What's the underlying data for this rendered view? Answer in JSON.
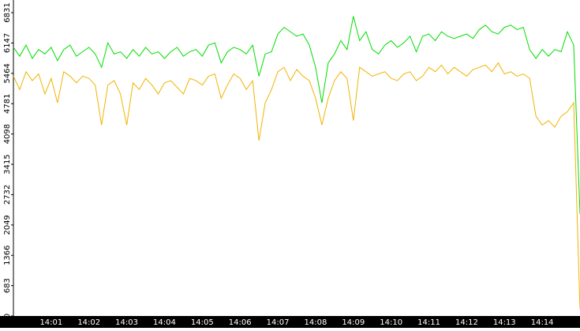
{
  "chart_data": {
    "type": "line",
    "categories": [
      null,
      null,
      null,
      null,
      null,
      null,
      "14:01",
      null,
      null,
      null,
      null,
      null,
      "14:02",
      null,
      null,
      null,
      null,
      null,
      "14:03",
      null,
      null,
      null,
      null,
      null,
      "14:04",
      null,
      null,
      null,
      null,
      null,
      "14:05",
      null,
      null,
      null,
      null,
      null,
      "14:06",
      null,
      null,
      null,
      null,
      null,
      "14:07",
      null,
      null,
      null,
      null,
      null,
      "14:08",
      null,
      null,
      null,
      null,
      null,
      "14:09",
      null,
      null,
      null,
      null,
      null,
      "14:10",
      null,
      null,
      null,
      null,
      null,
      "14:11",
      null,
      null,
      null,
      null,
      null,
      "14:12",
      null,
      null,
      null,
      null,
      null,
      "14:13",
      null,
      null,
      null,
      null,
      null,
      "14:14",
      null,
      null,
      null,
      null,
      null,
      null
    ],
    "series": [
      {
        "name": "green",
        "color": "#00dd00",
        "values": [
          6050,
          5850,
          6100,
          5800,
          6000,
          5900,
          6050,
          5750,
          6000,
          6100,
          5850,
          5950,
          6050,
          5900,
          5600,
          6150,
          5900,
          5950,
          5800,
          6000,
          5850,
          6050,
          5900,
          5950,
          5800,
          5950,
          6050,
          5850,
          5950,
          6000,
          5850,
          6100,
          6150,
          5700,
          5950,
          6050,
          6000,
          5900,
          6100,
          5400,
          5900,
          5950,
          6350,
          6500,
          6400,
          6300,
          6350,
          6100,
          5600,
          4800,
          5700,
          5900,
          6200,
          6000,
          6750,
          6200,
          6400,
          6000,
          5900,
          6100,
          6200,
          6050,
          6150,
          6300,
          5950,
          6300,
          6350,
          6200,
          6400,
          6300,
          6250,
          6300,
          6350,
          6250,
          6450,
          6550,
          6400,
          6350,
          6500,
          6550,
          6450,
          6500,
          6000,
          5800,
          6000,
          5850,
          6000,
          5950,
          6400,
          6100,
          2300
        ]
      },
      {
        "name": "orange",
        "color": "#f0b400",
        "values": [
          5400,
          5100,
          5500,
          5300,
          5450,
          5000,
          5350,
          4800,
          5500,
          5400,
          5250,
          5400,
          5350,
          5200,
          4300,
          5200,
          5300,
          5000,
          4300,
          5250,
          5100,
          5350,
          5200,
          5000,
          5250,
          5300,
          5150,
          5000,
          5350,
          5300,
          5200,
          5400,
          5450,
          4900,
          5200,
          5450,
          5350,
          5100,
          5300,
          3950,
          4800,
          5100,
          5500,
          5600,
          5300,
          5550,
          5400,
          5300,
          4900,
          4300,
          4900,
          5300,
          5500,
          5350,
          4400,
          5600,
          5500,
          5400,
          5450,
          5500,
          5350,
          5300,
          5450,
          5500,
          5300,
          5400,
          5600,
          5500,
          5650,
          5450,
          5600,
          5500,
          5400,
          5550,
          5600,
          5650,
          5500,
          5700,
          5450,
          5500,
          5400,
          5450,
          5350,
          4500,
          4300,
          4400,
          4250,
          4500,
          4600,
          4800,
          150
        ]
      }
    ],
    "ylim": [
      0,
      6831
    ],
    "yticks": [
      0,
      683,
      1366,
      2049,
      2732,
      3415,
      4098,
      4781,
      5464,
      6147,
      6831
    ]
  }
}
